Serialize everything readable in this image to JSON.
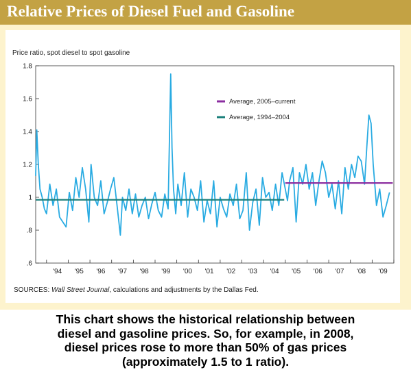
{
  "banner": {
    "title": "Relative Prices of Diesel Fuel and Gasoline"
  },
  "colors": {
    "banner_bg": "#c3a244",
    "panel_bg": "#fdf3cd",
    "series_line": "#29abe2",
    "avg_2005": "#8b2ea0",
    "avg_1994": "#1a7f7a"
  },
  "caption": "This chart shows the historical relationship between\ndiesel and gasoline prices.  So, for example, in 2008,\ndiesel prices rose to more than 50% of gas prices\n(approximately 1.5 to 1 ratio).",
  "chart_data": {
    "type": "line",
    "title": "",
    "ylabel": "Price ratio, spot diesel to spot gasoline",
    "xlabel": "",
    "ylim": [
      0.6,
      1.8
    ],
    "xlim": [
      1993.5,
      2010.0
    ],
    "y_ticks": [
      {
        "value": 0.6,
        "label": ".6"
      },
      {
        "value": 0.8,
        "label": ".8"
      },
      {
        "value": 1.0,
        "label": "1"
      },
      {
        "value": 1.2,
        "label": "1.2"
      },
      {
        "value": 1.4,
        "label": "1.4"
      },
      {
        "value": 1.6,
        "label": "1.6"
      },
      {
        "value": 1.8,
        "label": "1.8"
      }
    ],
    "x_ticks": [
      "'94",
      "'95",
      "'96",
      "'97",
      "'98",
      "'99",
      "'00",
      "'01",
      "'02",
      "'03",
      "'04",
      "'05",
      "'06",
      "'07",
      "'08",
      "'09"
    ],
    "grid": false,
    "legend_position": "upper-right",
    "series": [
      {
        "x": [
          1993.5,
          1993.55,
          1993.62,
          1993.7,
          1993.8,
          1993.9,
          1994.0,
          1994.15,
          1994.3,
          1994.45,
          1994.6,
          1994.75,
          1994.9,
          1995.05,
          1995.2,
          1995.35,
          1995.5,
          1995.65,
          1995.8,
          1995.95,
          1996.05,
          1996.2,
          1996.35,
          1996.5,
          1996.65,
          1996.8,
          1996.95,
          1997.1,
          1997.25,
          1997.4,
          1997.5,
          1997.65,
          1997.8,
          1997.95,
          1998.1,
          1998.25,
          1998.4,
          1998.55,
          1998.7,
          1998.85,
          1999.0,
          1999.15,
          1999.3,
          1999.45,
          1999.6,
          1999.72,
          1999.78,
          1999.85,
          1999.95,
          2000.05,
          2000.2,
          2000.35,
          2000.5,
          2000.65,
          2000.8,
          2000.95,
          2001.1,
          2001.25,
          2001.4,
          2001.55,
          2001.7,
          2001.85,
          2002.0,
          2002.15,
          2002.3,
          2002.45,
          2002.6,
          2002.75,
          2002.9,
          2003.05,
          2003.2,
          2003.35,
          2003.5,
          2003.65,
          2003.8,
          2003.95,
          2004.1,
          2004.25,
          2004.4,
          2004.55,
          2004.7,
          2004.85,
          2005.0,
          2005.1,
          2005.2,
          2005.35,
          2005.5,
          2005.65,
          2005.8,
          2005.95,
          2006.1,
          2006.25,
          2006.4,
          2006.55,
          2006.7,
          2006.85,
          2007.0,
          2007.15,
          2007.3,
          2007.45,
          2007.6,
          2007.75,
          2007.9,
          2008.05,
          2008.2,
          2008.35,
          2008.5,
          2008.65,
          2008.75,
          2008.85,
          2008.95,
          2009.05,
          2009.2,
          2009.35,
          2009.5,
          2009.65,
          2009.8
        ],
        "values": [
          1.13,
          1.41,
          1.2,
          1.05,
          1.0,
          0.93,
          0.9,
          1.08,
          0.95,
          1.05,
          0.88,
          0.85,
          0.82,
          1.03,
          0.92,
          1.12,
          1.0,
          1.18,
          1.05,
          0.85,
          1.2,
          1.0,
          0.95,
          1.1,
          0.9,
          0.97,
          1.05,
          1.12,
          0.95,
          0.77,
          1.0,
          0.92,
          1.05,
          0.9,
          1.02,
          0.88,
          0.95,
          1.0,
          0.87,
          0.96,
          1.03,
          0.92,
          0.88,
          1.02,
          0.93,
          1.75,
          1.3,
          1.05,
          0.9,
          1.08,
          0.95,
          1.15,
          0.88,
          1.05,
          1.0,
          0.92,
          1.1,
          0.85,
          0.98,
          0.9,
          1.1,
          0.82,
          1.0,
          0.93,
          0.88,
          1.02,
          0.95,
          1.08,
          0.87,
          0.92,
          1.15,
          0.8,
          0.97,
          1.05,
          0.83,
          1.12,
          1.0,
          1.03,
          0.92,
          1.08,
          0.95,
          1.15,
          1.05,
          0.98,
          1.1,
          1.18,
          0.85,
          1.15,
          1.08,
          1.2,
          1.05,
          1.15,
          0.95,
          1.1,
          1.22,
          1.15,
          1.0,
          1.08,
          0.93,
          1.1,
          0.9,
          1.18,
          1.05,
          1.2,
          1.12,
          1.25,
          1.22,
          1.08,
          1.3,
          1.5,
          1.45,
          1.2,
          0.95,
          1.05,
          0.88,
          0.95,
          1.03
        ]
      },
      {
        "name": "Average, 2005–current",
        "type": "hline",
        "value": 1.087,
        "x_start": 2005.0,
        "x_end": 2009.95
      },
      {
        "name": "Average, 1994–2004",
        "type": "hline",
        "value": 0.985,
        "x_start": 1993.5,
        "x_end": 2004.95
      }
    ],
    "footnote": {
      "prefix": "SOURCES: ",
      "italic": "Wall Street Journal",
      "suffix": ", calculations and adjustments by the Dallas Fed."
    }
  }
}
